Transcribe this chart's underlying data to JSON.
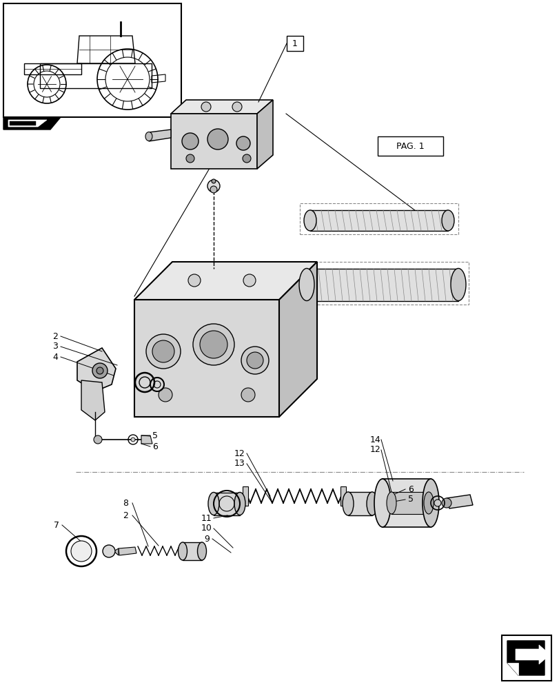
{
  "bg_color": "#ffffff",
  "line_color": "#000000",
  "light_gray": "#aaaaaa",
  "mid_gray": "#888888",
  "dark_gray": "#555555",
  "pag_label": "PAG. 1"
}
